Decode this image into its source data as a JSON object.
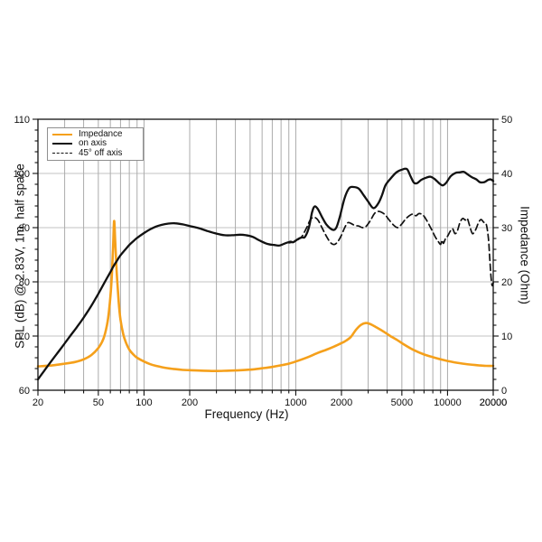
{
  "chart_data": {
    "type": "line",
    "title": "",
    "xlabel": "Frequency (Hz)",
    "ylabel_left": "SPL (dB) @ 2.83V, 1m, half space",
    "ylabel_right": "Impedance (Ohm)",
    "x_scale": "log",
    "x_range": [
      20,
      20000
    ],
    "y_left_range": [
      60,
      110
    ],
    "y_right_range": [
      0,
      50
    ],
    "x_tick_labels": [
      20,
      50,
      100,
      200,
      1000,
      2000,
      5000,
      10000,
      20000
    ],
    "y_left_tick_labels": [
      60,
      70,
      80,
      90,
      100,
      110
    ],
    "y_right_tick_labels": [
      0,
      10,
      20,
      30,
      40,
      50
    ],
    "grid": "on",
    "legend_position": "top-left",
    "colors": {
      "impedance": "#F5A01B",
      "spl": "#111111",
      "grid_v": "#ababab",
      "grid_h": "#c3c3c3",
      "frame": "#111111"
    },
    "series": [
      {
        "name": "Impedance",
        "axis": "right",
        "unit": "Ohm",
        "color": "#F5A01B",
        "style": "solid",
        "points": [
          [
            20,
            4.4
          ],
          [
            25,
            4.6
          ],
          [
            30,
            4.9
          ],
          [
            35,
            5.2
          ],
          [
            40,
            5.7
          ],
          [
            45,
            6.5
          ],
          [
            50,
            7.8
          ],
          [
            54,
            9.5
          ],
          [
            57,
            12
          ],
          [
            59,
            15
          ],
          [
            61,
            20
          ],
          [
            62.5,
            26
          ],
          [
            63.5,
            31.2
          ],
          [
            64.5,
            28
          ],
          [
            66,
            22
          ],
          [
            68,
            16.5
          ],
          [
            70,
            13
          ],
          [
            73,
            10.3
          ],
          [
            76,
            8.8
          ],
          [
            80,
            7.5
          ],
          [
            85,
            6.6
          ],
          [
            90,
            6.0
          ],
          [
            100,
            5.3
          ],
          [
            110,
            4.8
          ],
          [
            120,
            4.5
          ],
          [
            140,
            4.1
          ],
          [
            160,
            3.9
          ],
          [
            180,
            3.75
          ],
          [
            200,
            3.7
          ],
          [
            250,
            3.6
          ],
          [
            300,
            3.55
          ],
          [
            350,
            3.6
          ],
          [
            400,
            3.65
          ],
          [
            500,
            3.8
          ],
          [
            600,
            4.05
          ],
          [
            700,
            4.3
          ],
          [
            800,
            4.6
          ],
          [
            900,
            4.9
          ],
          [
            1000,
            5.3
          ],
          [
            1200,
            6.1
          ],
          [
            1400,
            6.9
          ],
          [
            1600,
            7.5
          ],
          [
            1800,
            8.1
          ],
          [
            2000,
            8.7
          ],
          [
            2100,
            9.0
          ],
          [
            2300,
            9.8
          ],
          [
            2500,
            11.2
          ],
          [
            2700,
            12.1
          ],
          [
            2900,
            12.4
          ],
          [
            3100,
            12.2
          ],
          [
            3400,
            11.6
          ],
          [
            3800,
            10.8
          ],
          [
            4200,
            10.0
          ],
          [
            4700,
            9.2
          ],
          [
            5200,
            8.4
          ],
          [
            6000,
            7.4
          ],
          [
            7000,
            6.6
          ],
          [
            8000,
            6.1
          ],
          [
            9000,
            5.7
          ],
          [
            10000,
            5.4
          ],
          [
            12000,
            5.0
          ],
          [
            14000,
            4.75
          ],
          [
            16000,
            4.6
          ],
          [
            18000,
            4.5
          ],
          [
            20000,
            4.5
          ]
        ]
      },
      {
        "name": "on axis",
        "axis": "left",
        "unit": "dB",
        "color": "#111111",
        "style": "solid",
        "points": [
          [
            20,
            62.0
          ],
          [
            22,
            63.6
          ],
          [
            25,
            65.7
          ],
          [
            28,
            67.5
          ],
          [
            32,
            69.7
          ],
          [
            36,
            71.6
          ],
          [
            40,
            73.4
          ],
          [
            45,
            75.6
          ],
          [
            50,
            77.8
          ],
          [
            55,
            79.9
          ],
          [
            60,
            81.8
          ],
          [
            63,
            82.9
          ],
          [
            66,
            83.8
          ],
          [
            70,
            84.9
          ],
          [
            75,
            85.9
          ],
          [
            80,
            86.8
          ],
          [
            85,
            87.5
          ],
          [
            90,
            88.1
          ],
          [
            100,
            89.0
          ],
          [
            110,
            89.7
          ],
          [
            120,
            90.2
          ],
          [
            130,
            90.5
          ],
          [
            145,
            90.75
          ],
          [
            160,
            90.8
          ],
          [
            180,
            90.6
          ],
          [
            200,
            90.3
          ],
          [
            230,
            89.9
          ],
          [
            260,
            89.4
          ],
          [
            300,
            88.9
          ],
          [
            340,
            88.6
          ],
          [
            380,
            88.6
          ],
          [
            430,
            88.7
          ],
          [
            470,
            88.6
          ],
          [
            520,
            88.3
          ],
          [
            580,
            87.6
          ],
          [
            650,
            87.0
          ],
          [
            720,
            86.8
          ],
          [
            780,
            86.7
          ],
          [
            850,
            87.1
          ],
          [
            920,
            87.4
          ],
          [
            960,
            87.3
          ],
          [
            1000,
            87.6
          ],
          [
            1050,
            88.0
          ],
          [
            1100,
            88.2
          ],
          [
            1150,
            88.3
          ],
          [
            1220,
            90.0
          ],
          [
            1280,
            92.8
          ],
          [
            1330,
            93.9
          ],
          [
            1400,
            93.4
          ],
          [
            1500,
            91.8
          ],
          [
            1600,
            90.5
          ],
          [
            1750,
            89.6
          ],
          [
            1850,
            90.0
          ],
          [
            1950,
            92.0
          ],
          [
            2100,
            95.5
          ],
          [
            2250,
            97.3
          ],
          [
            2400,
            97.5
          ],
          [
            2600,
            97.2
          ],
          [
            2800,
            96.0
          ],
          [
            3000,
            94.8
          ],
          [
            3250,
            93.6
          ],
          [
            3500,
            94.5
          ],
          [
            3700,
            96.0
          ],
          [
            3900,
            97.8
          ],
          [
            4200,
            99.0
          ],
          [
            4600,
            100.2
          ],
          [
            5000,
            100.7
          ],
          [
            5400,
            100.8
          ],
          [
            5700,
            99.5
          ],
          [
            6000,
            98.3
          ],
          [
            6300,
            98.2
          ],
          [
            6700,
            98.8
          ],
          [
            7200,
            99.2
          ],
          [
            7700,
            99.4
          ],
          [
            8200,
            99.0
          ],
          [
            8800,
            98.2
          ],
          [
            9300,
            97.8
          ],
          [
            9800,
            98.3
          ],
          [
            10500,
            99.5
          ],
          [
            11300,
            100.1
          ],
          [
            12000,
            100.2
          ],
          [
            12800,
            100.3
          ],
          [
            13600,
            99.8
          ],
          [
            14500,
            99.3
          ],
          [
            15500,
            98.9
          ],
          [
            16300,
            98.4
          ],
          [
            17500,
            98.4
          ],
          [
            18500,
            98.8
          ],
          [
            19300,
            98.9
          ],
          [
            20000,
            98.6
          ]
        ]
      },
      {
        "name": "45° off axis",
        "axis": "left",
        "unit": "dB",
        "color": "#111111",
        "style": "dashed",
        "points": [
          [
            900,
            87.2
          ],
          [
            950,
            87.3
          ],
          [
            1000,
            87.6
          ],
          [
            1050,
            87.9
          ],
          [
            1100,
            88.4
          ],
          [
            1180,
            90.0
          ],
          [
            1250,
            91.5
          ],
          [
            1320,
            91.9
          ],
          [
            1400,
            91.4
          ],
          [
            1500,
            89.8
          ],
          [
            1600,
            88.3
          ],
          [
            1700,
            87.2
          ],
          [
            1800,
            86.9
          ],
          [
            1900,
            87.5
          ],
          [
            2000,
            88.6
          ],
          [
            2100,
            90.0
          ],
          [
            2200,
            90.9
          ],
          [
            2300,
            90.8
          ],
          [
            2450,
            90.4
          ],
          [
            2600,
            90.3
          ],
          [
            2750,
            90.0
          ],
          [
            2900,
            90.2
          ],
          [
            3100,
            91.3
          ],
          [
            3300,
            92.6
          ],
          [
            3500,
            93.0
          ],
          [
            3700,
            92.8
          ],
          [
            3900,
            92.3
          ],
          [
            4100,
            91.5
          ],
          [
            4400,
            90.5
          ],
          [
            4700,
            90.0
          ],
          [
            5000,
            90.7
          ],
          [
            5300,
            91.6
          ],
          [
            5600,
            92.2
          ],
          [
            5900,
            92.5
          ],
          [
            6200,
            92.2
          ],
          [
            6500,
            92.6
          ],
          [
            6900,
            92.3
          ],
          [
            7300,
            91.3
          ],
          [
            7800,
            89.8
          ],
          [
            8300,
            88.3
          ],
          [
            8700,
            87.4
          ],
          [
            9000,
            86.9
          ],
          [
            9200,
            87.7
          ],
          [
            9400,
            87.1
          ],
          [
            9700,
            88.0
          ],
          [
            10000,
            88.4
          ],
          [
            10400,
            89.3
          ],
          [
            10800,
            89.8
          ],
          [
            11200,
            88.9
          ],
          [
            11600,
            89.4
          ],
          [
            12100,
            91.0
          ],
          [
            12600,
            91.7
          ],
          [
            13100,
            91.4
          ],
          [
            13500,
            91.7
          ],
          [
            14000,
            90.3
          ],
          [
            14600,
            88.9
          ],
          [
            15300,
            89.6
          ],
          [
            16000,
            90.9
          ],
          [
            16600,
            91.5
          ],
          [
            17300,
            91.0
          ],
          [
            18000,
            90.6
          ],
          [
            18600,
            88.0
          ],
          [
            19000,
            84.0
          ],
          [
            19400,
            80.5
          ],
          [
            19700,
            79.3
          ],
          [
            20000,
            79.8
          ]
        ]
      }
    ]
  }
}
